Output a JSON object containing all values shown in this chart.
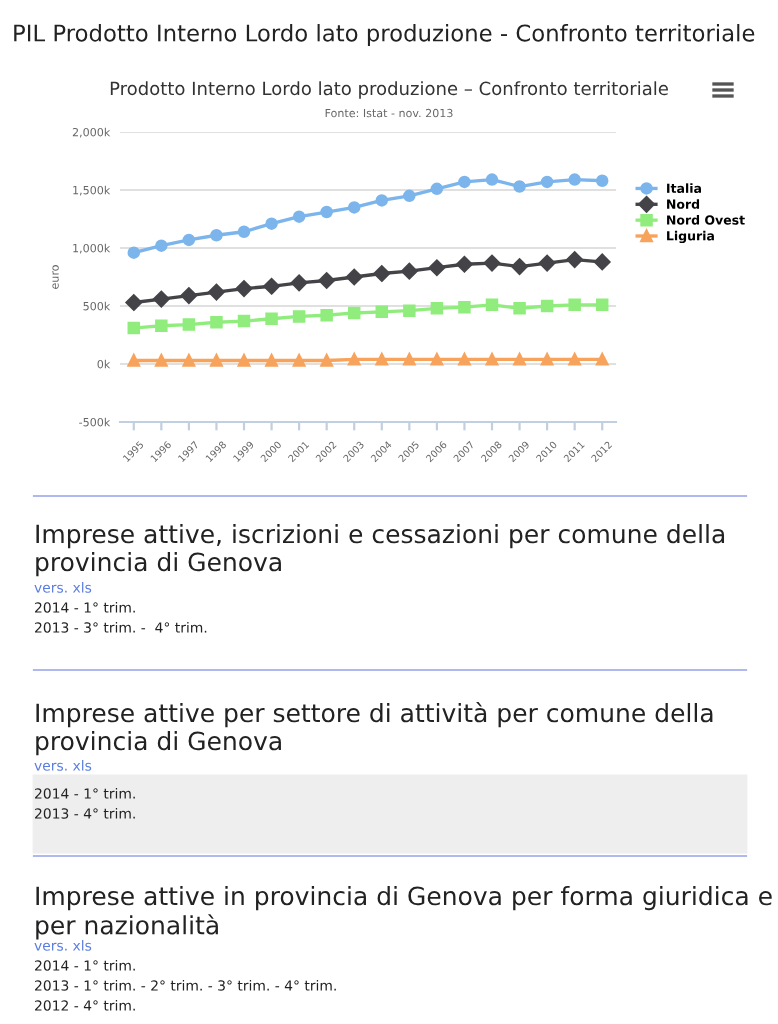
{
  "chart_data": {
    "type": "line",
    "title": "Prodotto Interno Lordo lato produzione – Confronto territoriale",
    "subtitle": "Fonte: Istat - nov. 2013",
    "ylabel": "euro",
    "categories": [
      "1995",
      "1996",
      "1997",
      "1998",
      "1999",
      "2000",
      "2001",
      "2002",
      "2003",
      "2004",
      "2005",
      "2006",
      "2007",
      "2008",
      "2009",
      "2010",
      "2011",
      "2012"
    ],
    "series": [
      {
        "name": "Italia",
        "color": "#7cb5ec",
        "marker": "circle",
        "values": [
          960,
          1020,
          1070,
          1110,
          1140,
          1210,
          1270,
          1310,
          1350,
          1410,
          1450,
          1510,
          1570,
          1590,
          1530,
          1570,
          1590,
          1580
        ]
      },
      {
        "name": "Nord",
        "color": "#434348",
        "marker": "diamond",
        "values": [
          530,
          560,
          590,
          620,
          650,
          670,
          700,
          720,
          750,
          780,
          800,
          830,
          860,
          870,
          840,
          870,
          900,
          880
        ]
      },
      {
        "name": "Nord Ovest",
        "color": "#90ed7d",
        "marker": "square",
        "values": [
          310,
          330,
          340,
          360,
          370,
          390,
          410,
          420,
          440,
          450,
          460,
          480,
          490,
          510,
          480,
          500,
          510,
          510
        ]
      },
      {
        "name": "Liguria",
        "color": "#f7a35c",
        "marker": "triangle",
        "values": [
          30,
          30,
          30,
          30,
          30,
          30,
          30,
          30,
          40,
          40,
          40,
          40,
          40,
          40,
          40,
          40,
          40,
          40
        ]
      }
    ],
    "ylim": [
      -500,
      2000
    ],
    "yticks": [
      {
        "value": -500,
        "label": "-500k"
      },
      {
        "value": 0,
        "label": "0k"
      },
      {
        "value": 500,
        "label": "500k"
      },
      {
        "value": 1000,
        "label": "1,000k"
      },
      {
        "value": 1500,
        "label": "1,500k"
      },
      {
        "value": 2000,
        "label": "2,000k"
      }
    ],
    "grid": "y",
    "legend": "right",
    "annotations": [
      "PIL Prodotto Interno Lordo lato produzione - Confronto territoriale",
      "Imprese attive, iscrizioni e cessazioni per comune della provincia di Genova",
      "vers. xls",
      "2014 - 1° trim.",
      "2013 - 3° trim. -  4° trim.",
      "Imprese attive per settore di attività per comune della provincia di Genova",
      "vers. xls",
      "2014 - 1° trim.",
      "2013 - 4° trim.",
      "Imprese attive in provincia di Genova per forma giuridica e per nazionalità",
      "vers. xls",
      "2014 - 1° trim.",
      "2013 - 1° trim. - 2° trim. - 3° trim. - 4° trim.",
      "2012 - 4° trim."
    ]
  }
}
